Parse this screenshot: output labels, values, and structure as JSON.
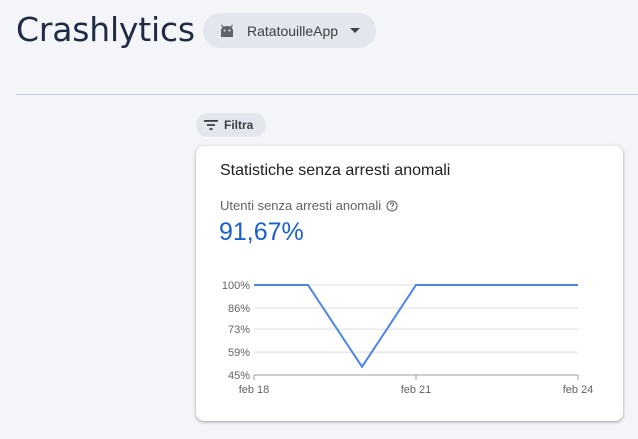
{
  "header": {
    "title": "Crashlytics",
    "app_picker": {
      "selected": "RatatouilleApp",
      "icon": "android-icon"
    }
  },
  "toolbar": {
    "filter_label": "Filtra",
    "filter_icon": "filter-icon"
  },
  "card": {
    "title": "Statistiche senza arresti anomali",
    "metric_label": "Utenti senza arresti anomali",
    "metric_value": "91,67%"
  },
  "colors": {
    "accent": "#1a5fd1",
    "line": "#4a86e8",
    "grid": "#dadce0"
  },
  "chart_data": {
    "type": "line",
    "x": [
      "feb 18",
      "feb 19",
      "feb 20",
      "feb 21",
      "feb 22",
      "feb 23",
      "feb 24"
    ],
    "series": [
      {
        "values": [
          100,
          100,
          50,
          100,
          100,
          100,
          100
        ]
      }
    ],
    "ytick_labels": [
      "100%",
      "86%",
      "73%",
      "59%",
      "45%"
    ],
    "ytick_values": [
      100,
      86,
      73,
      59,
      45
    ],
    "xtick_labels": [
      "feb 18",
      "feb 21",
      "feb 24"
    ],
    "ylim": [
      45,
      100
    ],
    "grid": true,
    "title": "",
    "xlabel": "",
    "ylabel": ""
  }
}
